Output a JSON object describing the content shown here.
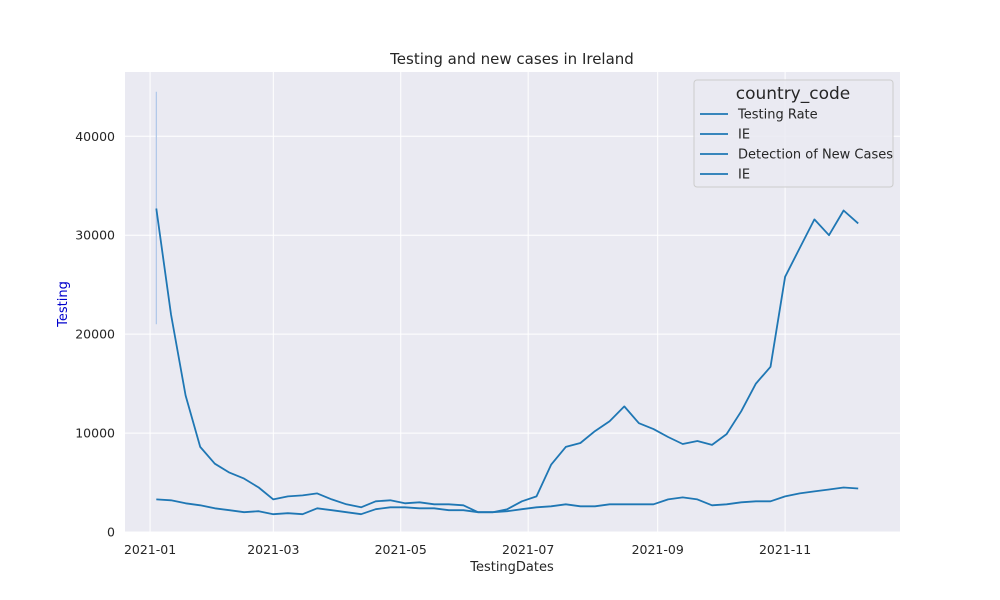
{
  "chart_data": {
    "type": "line",
    "title": "Testing and new cases in Ireland",
    "xlabel": "TestingDates",
    "ylabel": "Testing",
    "ylabel_color": "#0000cc",
    "x_ticks": [
      "2021-01",
      "2021-03",
      "2021-05",
      "2021-07",
      "2021-09",
      "2021-11"
    ],
    "xlim": [
      "2020-12-20",
      "2021-12-26"
    ],
    "y_ticks": [
      0,
      10000,
      20000,
      30000,
      40000
    ],
    "ylim": [
      0,
      46500
    ],
    "grid": true,
    "background": "#eaeaf2",
    "legend": {
      "placement": "top-right",
      "title": "country_code",
      "entries": [
        "Testing Rate",
        "IE",
        "Detection of New Cases",
        "IE"
      ]
    },
    "series": [
      {
        "color": "#1f77b4",
        "x": [
          "2021-01-04",
          "2021-01-11",
          "2021-01-18",
          "2021-01-25",
          "2021-02-01",
          "2021-02-08",
          "2021-02-15",
          "2021-02-22",
          "2021-03-01",
          "2021-03-08",
          "2021-03-15",
          "2021-03-22",
          "2021-03-29",
          "2021-04-05",
          "2021-04-12",
          "2021-04-19",
          "2021-04-26",
          "2021-05-03",
          "2021-05-10",
          "2021-05-17",
          "2021-05-24",
          "2021-05-31",
          "2021-06-07",
          "2021-06-14",
          "2021-06-21",
          "2021-06-28",
          "2021-07-05",
          "2021-07-12",
          "2021-07-19",
          "2021-07-26",
          "2021-08-02",
          "2021-08-09",
          "2021-08-16",
          "2021-08-23",
          "2021-08-30",
          "2021-09-06",
          "2021-09-13",
          "2021-09-20",
          "2021-09-27",
          "2021-10-04",
          "2021-10-11",
          "2021-10-18",
          "2021-10-25",
          "2021-11-01",
          "2021-11-08",
          "2021-11-15",
          "2021-11-22",
          "2021-11-29",
          "2021-12-06"
        ],
        "y": [
          32700,
          22000,
          13800,
          8600,
          6900,
          6000,
          5400,
          4500,
          3300,
          3600,
          3700,
          3900,
          3300,
          2800,
          2500,
          3100,
          3200,
          2900,
          3000,
          2800,
          2800,
          2700,
          2000,
          2000,
          2300,
          3100,
          3600,
          6800,
          8600,
          9000,
          10200,
          11200,
          12700,
          11000,
          10400,
          9600,
          8900,
          9200,
          8800,
          9900,
          12200,
          15000,
          16700,
          25800,
          28700,
          31600,
          30000,
          32500,
          31200
        ]
      },
      {
        "color": "#1f77b4",
        "x": [
          "2021-01-04",
          "2021-01-11",
          "2021-01-18",
          "2021-01-25",
          "2021-02-01",
          "2021-02-08",
          "2021-02-15",
          "2021-02-22",
          "2021-03-01",
          "2021-03-08",
          "2021-03-15",
          "2021-03-22",
          "2021-03-29",
          "2021-04-05",
          "2021-04-12",
          "2021-04-19",
          "2021-04-26",
          "2021-05-03",
          "2021-05-10",
          "2021-05-17",
          "2021-05-24",
          "2021-05-31",
          "2021-06-07",
          "2021-06-14",
          "2021-06-21",
          "2021-06-28",
          "2021-07-05",
          "2021-07-12",
          "2021-07-19",
          "2021-07-26",
          "2021-08-02",
          "2021-08-09",
          "2021-08-16",
          "2021-08-23",
          "2021-08-30",
          "2021-09-06",
          "2021-09-13",
          "2021-09-20",
          "2021-09-27",
          "2021-10-04",
          "2021-10-11",
          "2021-10-18",
          "2021-10-25",
          "2021-11-01",
          "2021-11-08",
          "2021-11-15",
          "2021-11-22",
          "2021-11-29",
          "2021-12-06"
        ],
        "y": [
          3300,
          3200,
          2900,
          2700,
          2400,
          2200,
          2000,
          2100,
          1800,
          1900,
          1800,
          2400,
          2200,
          2000,
          1800,
          2300,
          2500,
          2500,
          2400,
          2400,
          2200,
          2200,
          2000,
          2000,
          2100,
          2300,
          2500,
          2600,
          2800,
          2600,
          2600,
          2800,
          2800,
          2800,
          2800,
          3300,
          3500,
          3300,
          2700,
          2800,
          3000,
          3100,
          3100,
          3600,
          3900,
          4100,
          4300,
          4500,
          4400
        ]
      }
    ],
    "band": {
      "color": "#aec7e8",
      "x": "2021-01-04",
      "y_low": 21000,
      "y_high": 44500
    }
  }
}
